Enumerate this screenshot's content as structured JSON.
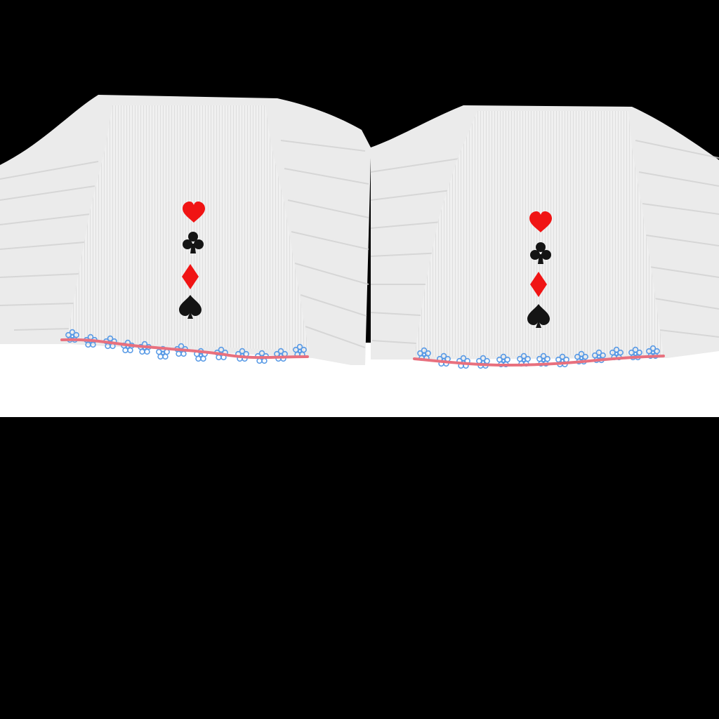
{
  "texture": {
    "panels": [
      {
        "id": "left",
        "suits": [
          "hearts",
          "clubs",
          "diamonds",
          "spades"
        ],
        "trim": "blue-flower-lace"
      },
      {
        "id": "right",
        "suits": [
          "hearts",
          "clubs",
          "diamonds",
          "spades"
        ],
        "trim": "blue-flower-lace"
      }
    ],
    "colors": {
      "background": "#000000",
      "fabric": "#eeeeee",
      "fabric_shadow": "#d4d4d4",
      "white_band": "#ffffff",
      "suit_red": "#f01414",
      "suit_black": "#141414",
      "lace_blue": "#5a9be6",
      "ribbon_pink": "#e8707e"
    },
    "icons": {
      "hearts": "heart-icon",
      "clubs": "club-icon",
      "diamonds": "diamond-icon",
      "spades": "spade-icon",
      "flower": "flower-icon"
    }
  }
}
